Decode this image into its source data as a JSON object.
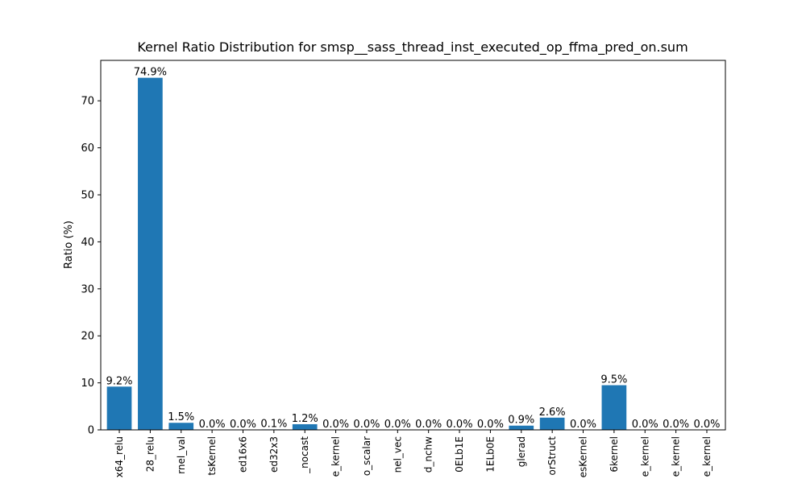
{
  "chart_data": {
    "type": "bar",
    "title": "Kernel Ratio Distribution for smsp__sass_thread_inst_executed_op_ffma_pred_on.sum",
    "xlabel": "",
    "ylabel": "Ratio (%)",
    "ylim": [
      0,
      78.6
    ],
    "yticks": [
      "0",
      "10",
      "20",
      "30",
      "40",
      "50",
      "60",
      "70"
    ],
    "bar_color": "#1f77b4",
    "grid": false,
    "categories": [
      "x64_relu",
      "28_relu",
      "rnel_val",
      "tsKernel",
      "ed16x6",
      "ed32x3",
      "_nocast",
      "e_kernel",
      "o_scalar",
      "nel_vec",
      "d_nchw",
      "0ELb1E",
      "1ELb0E",
      "glerad",
      "orStruct",
      "esKernel",
      "6kernel",
      "e_kernel",
      "e_kernel",
      "e_kernel"
    ],
    "values": [
      9.2,
      74.9,
      1.5,
      0.0,
      0.0,
      0.1,
      1.2,
      0.0,
      0.0,
      0.0,
      0.0,
      0.0,
      0.0,
      0.9,
      2.6,
      0.0,
      9.5,
      0.0,
      0.0,
      0.0
    ],
    "data_labels": [
      "9.2%",
      "74.9%",
      "1.5%",
      "0.0%",
      "0.0%",
      "0.1%",
      "1.2%",
      "0.0%",
      "0.0%",
      "0.0%",
      "0.0%",
      "0.0%",
      "0.0%",
      "0.9%",
      "2.6%",
      "0.0%",
      "9.5%",
      "0.0%",
      "0.0%",
      "0.0%"
    ]
  }
}
